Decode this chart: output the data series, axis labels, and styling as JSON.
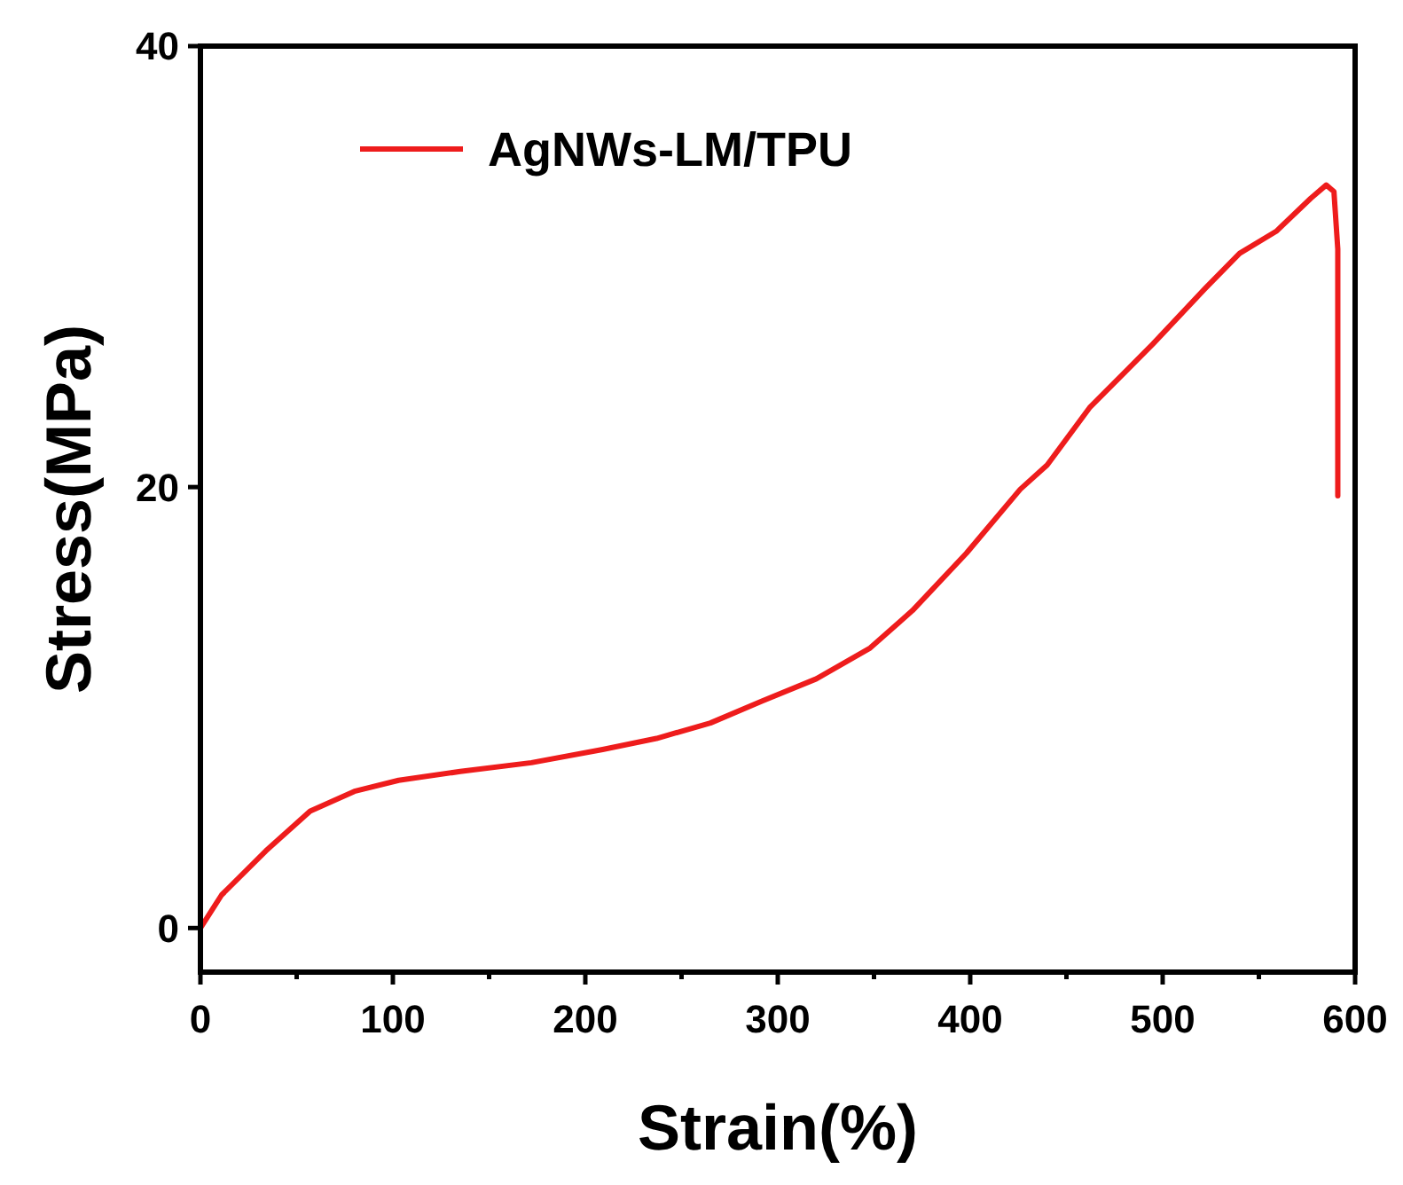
{
  "chart_data": {
    "type": "line",
    "xlabel": "Strain(%)",
    "ylabel": "Stress(MPa)",
    "xlim": [
      0,
      600
    ],
    "ylim": [
      -2,
      40
    ],
    "xticks": [
      0,
      {
        "value": 50,
        "label": null
      },
      100,
      {
        "value": 150,
        "label": null
      },
      200,
      {
        "value": 250,
        "label": null
      },
      300,
      {
        "value": 350,
        "label": null
      },
      400,
      {
        "value": 450,
        "label": null
      },
      500,
      {
        "value": 550,
        "label": null
      },
      600
    ],
    "yticks": [
      0,
      20,
      40
    ],
    "legend": "top left",
    "marker": "none",
    "line_style": "solid",
    "grid": false,
    "series": [
      {
        "name": "AgNWs-LM/TPU",
        "color": "#ee1c1c",
        "x": [
          0,
          11,
          34,
          57,
          80,
          103,
          135,
          172,
          209,
          237,
          265,
          292,
          320,
          348,
          370,
          398,
          426,
          440,
          462,
          495,
          522,
          540,
          559,
          577,
          585,
          589,
          591,
          591
        ],
        "values": [
          0,
          1.5,
          3.5,
          5.3,
          6.2,
          6.7,
          7.1,
          7.5,
          8.1,
          8.6,
          9.3,
          10.3,
          11.3,
          12.7,
          14.4,
          17.0,
          19.9,
          21.0,
          23.6,
          26.5,
          29.0,
          30.6,
          31.6,
          33.1,
          33.7,
          33.4,
          30.8,
          19.6
        ]
      }
    ]
  }
}
